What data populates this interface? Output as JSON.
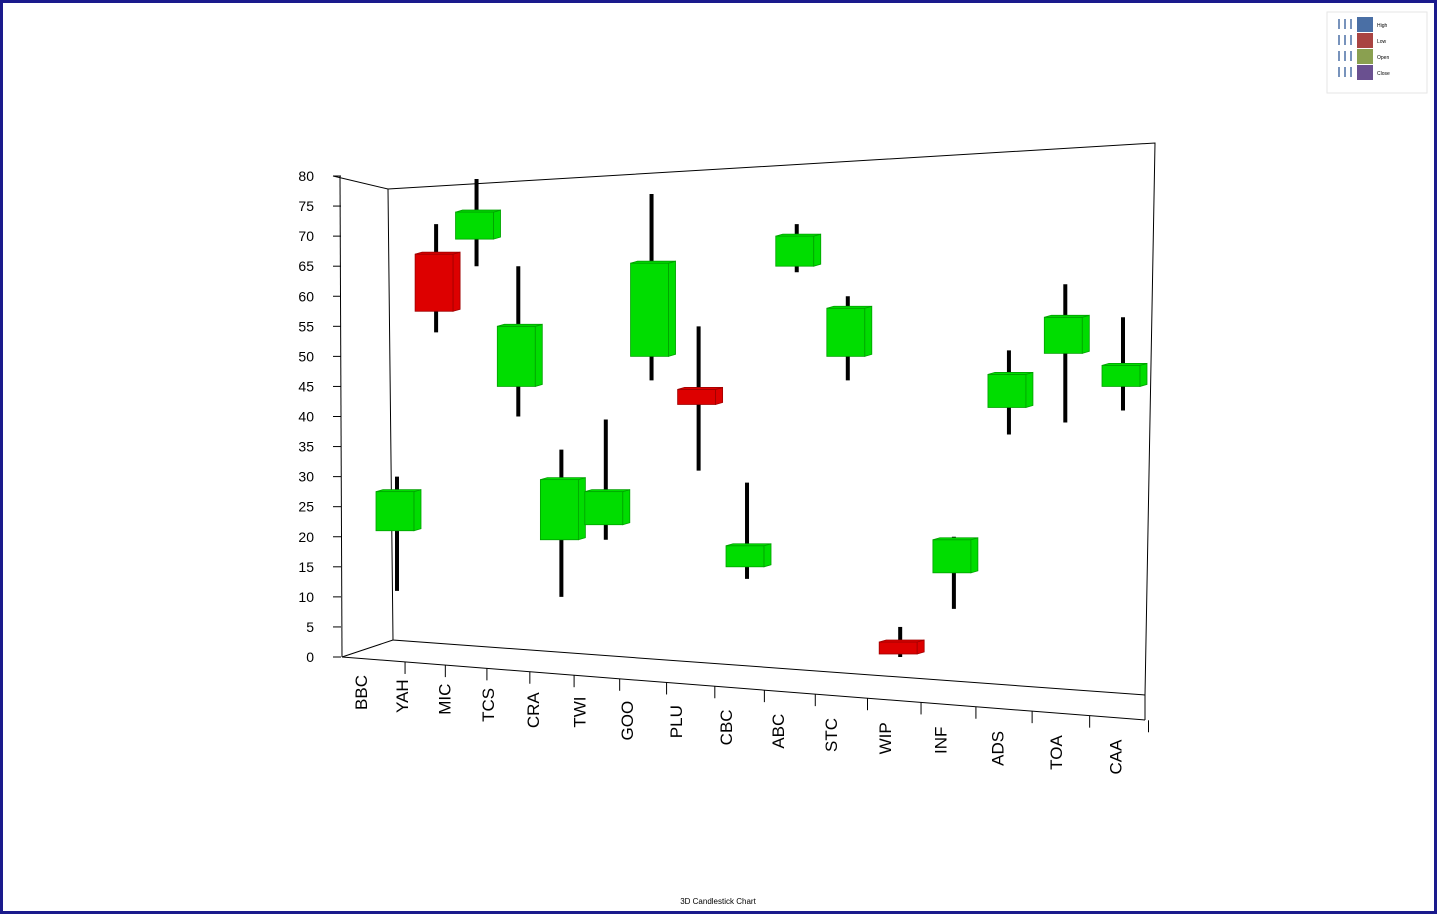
{
  "chart_data": {
    "type": "candlestick",
    "title": "3D Candlestick Chart",
    "categories": [
      "BBC",
      "YAH",
      "MIC",
      "TCS",
      "CRA",
      "TWI",
      "GOO",
      "PLU",
      "CBC",
      "ABC",
      "STC",
      "WIP",
      "INF",
      "ADS",
      "TOA",
      "CAA"
    ],
    "open": [
      21,
      67,
      69.5,
      45,
      19.5,
      22,
      50,
      44.5,
      15,
      65,
      50,
      2.5,
      14,
      41.5,
      50.5,
      45
    ],
    "high": [
      30,
      72,
      79.5,
      65,
      34.5,
      39.5,
      77,
      55,
      29,
      72,
      60,
      5,
      20,
      51,
      62,
      56.5
    ],
    "low": [
      11,
      54,
      65,
      40,
      10,
      19.5,
      46,
      31,
      13,
      64,
      46,
      0,
      8,
      37,
      39,
      41
    ],
    "close": [
      27.5,
      57.5,
      74,
      55,
      29.5,
      27.5,
      65.5,
      42,
      18.5,
      70,
      58,
      0.5,
      19.5,
      47,
      56.5,
      48.5
    ],
    "up_color": "#00dd00",
    "down_color": "#dd0000",
    "wick_color": "#000000",
    "ylim": [
      0,
      80
    ],
    "yticks": [
      0,
      5,
      10,
      15,
      20,
      25,
      30,
      35,
      40,
      45,
      50,
      55,
      60,
      65,
      70,
      75,
      80
    ],
    "legend": [
      {
        "name": "High",
        "color": "#4a6fa5"
      },
      {
        "name": "Low",
        "color": "#a94442"
      },
      {
        "name": "Open",
        "color": "#8aa050"
      },
      {
        "name": "Close",
        "color": "#6a5090"
      }
    ]
  }
}
